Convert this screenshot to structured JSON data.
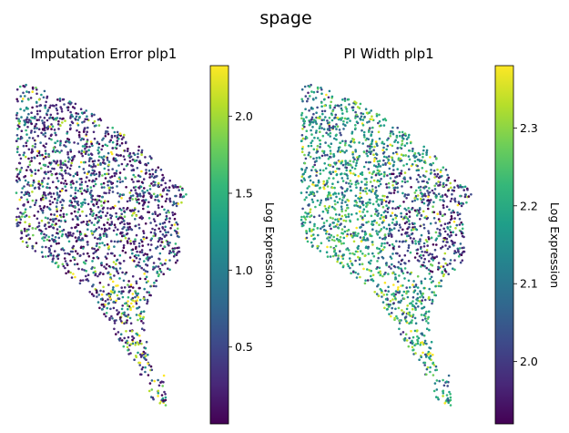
{
  "suptitle": "spage",
  "chart_data": [
    {
      "type": "scatter",
      "title": "Imputation Error plp1",
      "colormap": "viridis",
      "colorbar": {
        "label": "Log Expression",
        "range": [
          0.0,
          2.33
        ],
        "ticks": [
          0.5,
          1.0,
          1.5,
          2.0
        ],
        "tick_labels": [
          "0.5",
          "1.0",
          "1.5",
          "2.0"
        ]
      },
      "axes_visible": false,
      "point_color_distribution": "mostly low values (dark purple) with scattered high values (yellow), more yellow along lower-left edge",
      "n_points_approx": 2000
    },
    {
      "type": "scatter",
      "title": "PI Width plp1",
      "colormap": "viridis",
      "colorbar": {
        "label": "Log Expression",
        "range": [
          1.92,
          2.38
        ],
        "ticks": [
          2.0,
          2.1,
          2.2,
          2.3
        ],
        "tick_labels": [
          "2.0",
          "2.1",
          "2.2",
          "2.3"
        ]
      },
      "axes_visible": false,
      "point_color_distribution": "mixed mid-to-high values (teal/green) with dark purple cluster in upper-right interior",
      "n_points_approx": 2000
    }
  ],
  "colors": {
    "viridis": [
      "#440154",
      "#482878",
      "#3e4989",
      "#31688e",
      "#26828e",
      "#1f9e89",
      "#35b779",
      "#6ece58",
      "#b5de2b",
      "#fde725"
    ]
  }
}
